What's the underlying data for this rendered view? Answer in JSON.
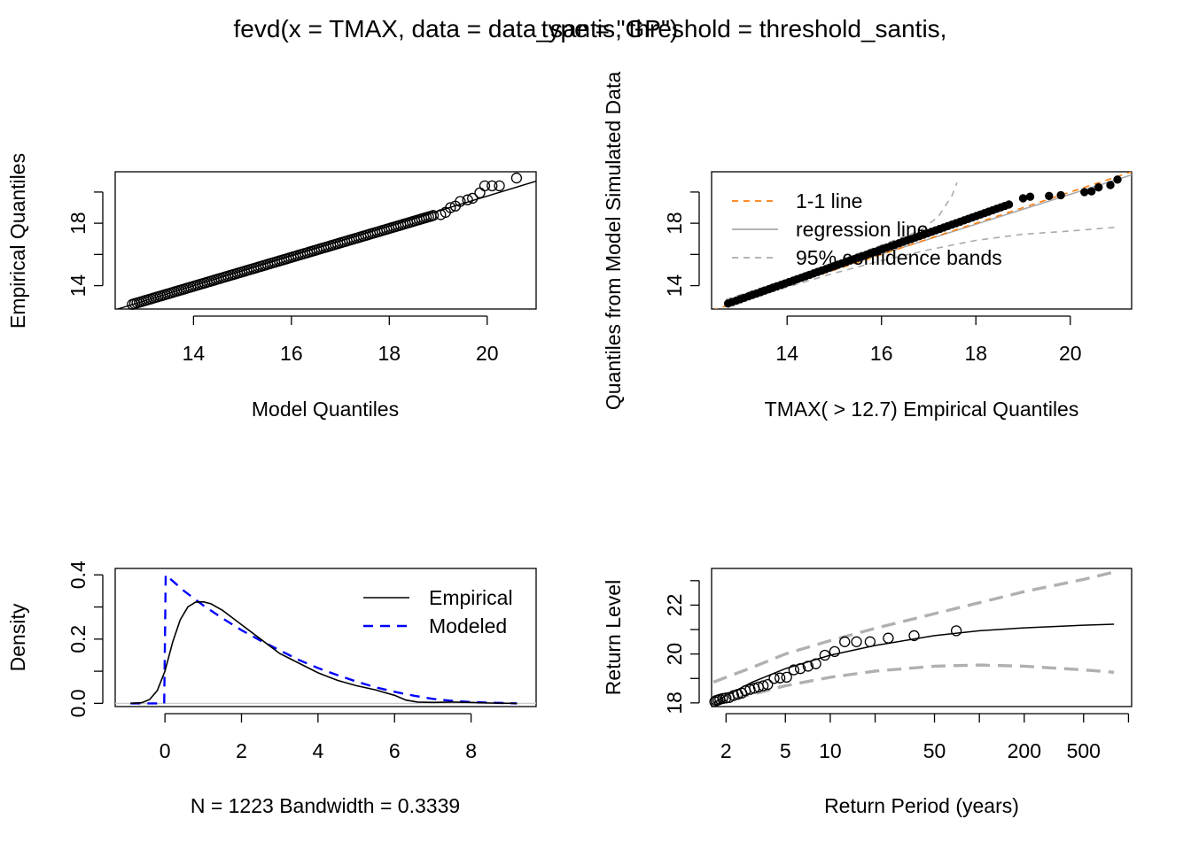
{
  "title": {
    "left": "fevd(x = TMAX, data = data_santis, threshold = threshold_santis,",
    "overlap": "type = \"GP\")"
  },
  "chart_data": [
    {
      "id": "qq-model",
      "type": "scatter",
      "xlabel": "Model Quantiles",
      "ylabel": "Empirical Quantiles",
      "xlim": [
        12.4,
        21.0
      ],
      "ylim": [
        12.5,
        21.3
      ],
      "xticks": [
        14,
        16,
        18,
        20
      ],
      "yticks": [
        14,
        18
      ],
      "minor_yticks": [
        16,
        20
      ],
      "points_gen": {
        "n": 130,
        "x0": 12.75,
        "x1": 18.9,
        "y0": 12.8,
        "y1": 18.5
      },
      "points_extra": [
        {
          "x": 19.05,
          "y": 18.55
        },
        {
          "x": 19.15,
          "y": 18.7
        },
        {
          "x": 19.25,
          "y": 19.0
        },
        {
          "x": 19.35,
          "y": 19.1
        },
        {
          "x": 19.45,
          "y": 19.4
        },
        {
          "x": 19.6,
          "y": 19.5
        },
        {
          "x": 19.7,
          "y": 19.6
        },
        {
          "x": 19.85,
          "y": 19.95
        },
        {
          "x": 19.95,
          "y": 20.4
        },
        {
          "x": 20.1,
          "y": 20.4
        },
        {
          "x": 20.25,
          "y": 20.4
        },
        {
          "x": 20.6,
          "y": 20.9
        }
      ],
      "line": [
        [
          12.4,
          12.45
        ],
        [
          21.0,
          20.7
        ]
      ]
    },
    {
      "id": "qq-simulated",
      "type": "scatter",
      "xlabel": "TMAX( > 12.7) Empirical Quantiles",
      "ylabel": "Quantiles from Model Simulated Data",
      "xlim": [
        12.4,
        21.3
      ],
      "ylim": [
        12.5,
        21.3
      ],
      "xticks": [
        14,
        16,
        18,
        20
      ],
      "yticks": [
        14,
        18
      ],
      "minor_yticks": [
        16,
        20
      ],
      "points_gen": {
        "n": 70,
        "x0": 12.75,
        "x1": 18.7,
        "y0": 12.85,
        "y1": 19.2
      },
      "points_extra": [
        {
          "x": 19.0,
          "y": 19.6
        },
        {
          "x": 19.15,
          "y": 19.7
        },
        {
          "x": 19.55,
          "y": 19.75
        },
        {
          "x": 19.8,
          "y": 19.8
        },
        {
          "x": 20.3,
          "y": 20.0
        },
        {
          "x": 20.45,
          "y": 20.05
        },
        {
          "x": 20.6,
          "y": 20.3
        },
        {
          "x": 20.85,
          "y": 20.45
        },
        {
          "x": 21.0,
          "y": 20.8
        }
      ],
      "one_to_one": [
        [
          12.4,
          12.4
        ],
        [
          21.3,
          21.3
        ]
      ],
      "regression": [
        [
          12.7,
          12.85
        ],
        [
          21.3,
          21.1
        ]
      ],
      "upper_band": [
        [
          12.7,
          13.1
        ],
        [
          14.0,
          14.4
        ],
        [
          15.0,
          15.5
        ],
        [
          16.0,
          16.6
        ],
        [
          16.8,
          17.5
        ],
        [
          17.2,
          18.4
        ],
        [
          17.5,
          19.8
        ],
        [
          17.6,
          20.6
        ]
      ],
      "lower_band": [
        [
          12.7,
          12.7
        ],
        [
          14.0,
          13.9
        ],
        [
          15.0,
          14.8
        ],
        [
          16.0,
          15.6
        ],
        [
          17.0,
          16.3
        ],
        [
          18.0,
          16.9
        ],
        [
          19.0,
          17.3
        ],
        [
          20.0,
          17.5
        ],
        [
          21.0,
          17.75
        ]
      ],
      "legend": [
        {
          "label": "1-1 line",
          "color": "#ff7f0e",
          "dash": true
        },
        {
          "label": "regression line",
          "color": "#aaaaaa",
          "dash": false
        },
        {
          "label": "95% confidence bands",
          "color": "#aaaaaa",
          "dash": true
        }
      ]
    },
    {
      "id": "density",
      "type": "line",
      "xlabel": "N = 1223   Bandwidth = 0.3339",
      "ylabel": "Density",
      "xlim": [
        -1.3,
        9.7
      ],
      "ylim": [
        -0.01,
        0.42
      ],
      "xticks": [
        0,
        2,
        4,
        6,
        8
      ],
      "yticks": [
        0.0,
        0.2,
        0.4
      ],
      "minor_yticks": [
        0.1,
        0.3
      ],
      "empirical": [
        [
          -0.9,
          0.0
        ],
        [
          -0.6,
          0.002
        ],
        [
          -0.4,
          0.012
        ],
        [
          -0.2,
          0.04
        ],
        [
          0.0,
          0.1
        ],
        [
          0.2,
          0.19
        ],
        [
          0.4,
          0.26
        ],
        [
          0.6,
          0.3
        ],
        [
          0.8,
          0.315
        ],
        [
          1.0,
          0.316
        ],
        [
          1.2,
          0.31
        ],
        [
          1.5,
          0.29
        ],
        [
          2.0,
          0.245
        ],
        [
          2.5,
          0.2
        ],
        [
          3.0,
          0.155
        ],
        [
          3.5,
          0.125
        ],
        [
          4.0,
          0.095
        ],
        [
          4.5,
          0.072
        ],
        [
          5.0,
          0.055
        ],
        [
          5.5,
          0.042
        ],
        [
          6.0,
          0.025
        ],
        [
          6.3,
          0.01
        ],
        [
          6.6,
          0.004
        ],
        [
          7.0,
          0.003
        ],
        [
          7.5,
          0.004
        ],
        [
          8.0,
          0.003
        ],
        [
          8.5,
          0.001
        ],
        [
          9.2,
          0.0
        ]
      ],
      "modeled": [
        [
          -0.9,
          0.0
        ],
        [
          -0.02,
          0.0
        ],
        [
          0.02,
          0.4
        ],
        [
          0.5,
          0.35
        ],
        [
          1.0,
          0.305
        ],
        [
          1.5,
          0.265
        ],
        [
          2.0,
          0.228
        ],
        [
          2.5,
          0.195
        ],
        [
          3.0,
          0.165
        ],
        [
          3.5,
          0.135
        ],
        [
          4.0,
          0.11
        ],
        [
          4.5,
          0.088
        ],
        [
          5.0,
          0.068
        ],
        [
          5.5,
          0.05
        ],
        [
          6.0,
          0.036
        ],
        [
          6.5,
          0.024
        ],
        [
          7.0,
          0.014
        ],
        [
          7.5,
          0.008
        ],
        [
          8.0,
          0.004
        ],
        [
          8.5,
          0.002
        ],
        [
          9.2,
          0.0
        ]
      ],
      "legend": [
        {
          "label": "Empirical",
          "color": "#000000",
          "dash": false
        },
        {
          "label": "Modeled",
          "color": "#0000ff",
          "dash": true
        }
      ]
    },
    {
      "id": "return-level",
      "type": "line",
      "xlabel": "Return Period (years)",
      "ylabel": "Return Level",
      "log_x": true,
      "xlim": [
        1.6,
        1050
      ],
      "ylim": [
        17.85,
        23.5
      ],
      "xticks": [
        2,
        5,
        10,
        50,
        200,
        500
      ],
      "minor_xticks": [
        20,
        100,
        1000
      ],
      "yticks": [
        18,
        20,
        22
      ],
      "minor_yticks": [
        19,
        21,
        23
      ],
      "estimate": [
        [
          1.65,
          18.0
        ],
        [
          2,
          18.3
        ],
        [
          3,
          18.85
        ],
        [
          5,
          19.4
        ],
        [
          10,
          19.95
        ],
        [
          20,
          20.35
        ],
        [
          50,
          20.75
        ],
        [
          100,
          20.95
        ],
        [
          200,
          21.07
        ],
        [
          500,
          21.18
        ],
        [
          800,
          21.22
        ]
      ],
      "upper_ci": [
        [
          1.65,
          18.85
        ],
        [
          3,
          19.45
        ],
        [
          5,
          20.0
        ],
        [
          10,
          20.55
        ],
        [
          20,
          21.05
        ],
        [
          50,
          21.65
        ],
        [
          100,
          22.1
        ],
        [
          200,
          22.55
        ],
        [
          500,
          23.05
        ],
        [
          800,
          23.35
        ]
      ],
      "lower_ci": [
        [
          1.65,
          17.95
        ],
        [
          2,
          18.1
        ],
        [
          3,
          18.35
        ],
        [
          5,
          18.7
        ],
        [
          10,
          19.05
        ],
        [
          20,
          19.3
        ],
        [
          50,
          19.5
        ],
        [
          100,
          19.55
        ],
        [
          200,
          19.5
        ],
        [
          500,
          19.35
        ],
        [
          800,
          19.25
        ]
      ],
      "points": [
        [
          1.68,
          18.05
        ],
        [
          1.72,
          18.1
        ],
        [
          1.77,
          18.12
        ],
        [
          1.82,
          18.15
        ],
        [
          1.9,
          18.18
        ],
        [
          2.0,
          18.2
        ],
        [
          2.1,
          18.22
        ],
        [
          2.25,
          18.3
        ],
        [
          2.4,
          18.35
        ],
        [
          2.55,
          18.4
        ],
        [
          2.7,
          18.5
        ],
        [
          2.9,
          18.55
        ],
        [
          3.1,
          18.6
        ],
        [
          3.3,
          18.65
        ],
        [
          3.55,
          18.7
        ],
        [
          3.8,
          18.75
        ],
        [
          4.2,
          19.0
        ],
        [
          4.6,
          19.02
        ],
        [
          5.1,
          19.05
        ],
        [
          5.7,
          19.35
        ],
        [
          6.3,
          19.4
        ],
        [
          7.1,
          19.5
        ],
        [
          8.0,
          19.6
        ],
        [
          9.2,
          19.95
        ],
        [
          10.7,
          20.1
        ],
        [
          12.5,
          20.5
        ],
        [
          15.0,
          20.5
        ],
        [
          18.5,
          20.5
        ],
        [
          24.5,
          20.65
        ],
        [
          36.5,
          20.75
        ],
        [
          70.0,
          20.95
        ]
      ]
    }
  ]
}
